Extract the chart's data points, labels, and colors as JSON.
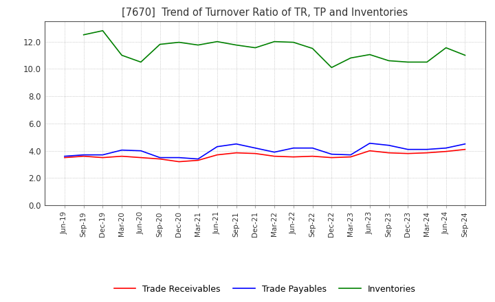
{
  "title": "[7670]  Trend of Turnover Ratio of TR, TP and Inventories",
  "ylim": [
    0.0,
    13.5
  ],
  "yticks": [
    0.0,
    2.0,
    4.0,
    6.0,
    8.0,
    10.0,
    12.0
  ],
  "legend_labels": [
    "Trade Receivables",
    "Trade Payables",
    "Inventories"
  ],
  "legend_colors": [
    "#ff0000",
    "#0000ff",
    "#008000"
  ],
  "x_labels": [
    "Jun-19",
    "Sep-19",
    "Dec-19",
    "Mar-20",
    "Jun-20",
    "Sep-20",
    "Dec-20",
    "Mar-21",
    "Jun-21",
    "Sep-21",
    "Dec-21",
    "Mar-22",
    "Jun-22",
    "Sep-22",
    "Dec-22",
    "Mar-23",
    "Jun-23",
    "Sep-23",
    "Dec-23",
    "Mar-24",
    "Jun-24",
    "Sep-24"
  ],
  "trade_receivables": [
    3.5,
    3.6,
    3.5,
    3.6,
    3.5,
    3.4,
    3.2,
    3.3,
    3.7,
    3.85,
    3.8,
    3.6,
    3.55,
    3.6,
    3.5,
    3.55,
    4.0,
    3.85,
    3.8,
    3.85,
    3.95,
    4.1
  ],
  "trade_payables": [
    3.6,
    3.7,
    3.7,
    4.05,
    4.0,
    3.5,
    3.5,
    3.4,
    4.3,
    4.5,
    4.2,
    3.9,
    4.2,
    4.2,
    3.75,
    3.7,
    4.55,
    4.4,
    4.1,
    4.1,
    4.2,
    4.5
  ],
  "inventories": [
    null,
    12.5,
    12.8,
    11.0,
    10.5,
    11.8,
    11.95,
    11.75,
    12.0,
    11.75,
    11.55,
    12.0,
    11.95,
    11.5,
    10.1,
    10.8,
    11.05,
    10.6,
    10.5,
    10.5,
    11.55,
    11.0
  ]
}
